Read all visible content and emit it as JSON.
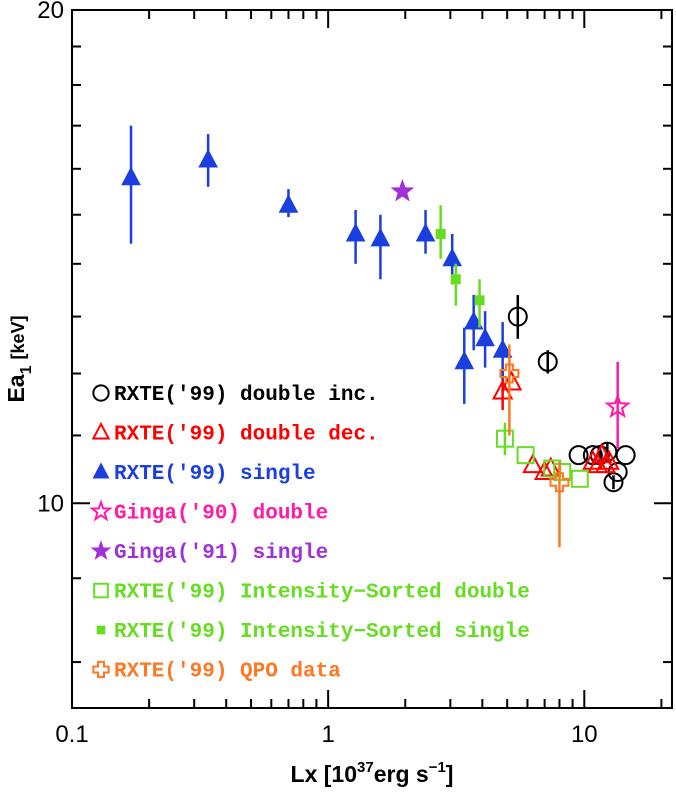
{
  "chart_data": {
    "type": "scatter",
    "xscale": "log",
    "yscale": "log",
    "xlim": [
      0.1,
      22
    ],
    "ylim": [
      7.5,
      20
    ],
    "xlabel": "Lx [10",
    "xlabel_sup": "37",
    "xlabel_tail": "erg s",
    "xlabel_tail_sup": "−1",
    "xlabel_close": "]",
    "ylabel": "Ea",
    "ylabel_sub": "1",
    "ylabel_unit": "[keV]",
    "x_ticks": [
      {
        "value": 0.1,
        "label": "0.1"
      },
      {
        "value": 1,
        "label": "1"
      },
      {
        "value": 10,
        "label": "10"
      }
    ],
    "y_ticks": [
      {
        "value": 10,
        "label": "10"
      },
      {
        "value": 20,
        "label": "20"
      }
    ],
    "legend_position": "left-middle",
    "series": [
      {
        "name": "RXTE('99) double inc.",
        "marker": "open-circle",
        "color": "#000000",
        "points": [
          {
            "x": 5.5,
            "y": 13.0,
            "ylo": 12.6,
            "yhi": 13.4
          },
          {
            "x": 7.2,
            "y": 12.2,
            "ylo": 12.0,
            "yhi": 12.4
          },
          {
            "x": 9.5,
            "y": 10.7
          },
          {
            "x": 10.8,
            "y": 10.7
          },
          {
            "x": 11.5,
            "y": 10.7,
            "ylo": 10.6,
            "yhi": 10.85
          },
          {
            "x": 12.3,
            "y": 10.75,
            "ylo": 10.6,
            "yhi": 10.9
          },
          {
            "x": 13.0,
            "y": 10.3,
            "ylo": 10.2,
            "yhi": 10.4
          },
          {
            "x": 13.5,
            "y": 10.45
          },
          {
            "x": 14.5,
            "y": 10.7
          }
        ]
      },
      {
        "name": "RXTE('99) double dec.",
        "marker": "open-triangle",
        "color": "#ff0000",
        "points": [
          {
            "x": 4.8,
            "y": 11.7,
            "ylo": 11.4,
            "yhi": 12.1
          },
          {
            "x": 5.2,
            "y": 11.85
          },
          {
            "x": 6.3,
            "y": 10.55
          },
          {
            "x": 7.0,
            "y": 10.45
          },
          {
            "x": 7.4,
            "y": 10.5
          },
          {
            "x": 10.8,
            "y": 10.6
          },
          {
            "x": 11.3,
            "y": 10.55
          },
          {
            "x": 11.7,
            "y": 10.7
          },
          {
            "x": 12.1,
            "y": 10.55
          },
          {
            "x": 12.5,
            "y": 10.6
          }
        ]
      },
      {
        "name": "RXTE('99) single",
        "marker": "filled-triangle",
        "color": "#1a3ee0",
        "points": [
          {
            "x": 0.17,
            "y": 15.8,
            "ylo": 14.4,
            "yhi": 17.0
          },
          {
            "x": 0.34,
            "y": 16.2,
            "ylo": 15.6,
            "yhi": 16.8
          },
          {
            "x": 0.7,
            "y": 15.2,
            "ylo": 14.95,
            "yhi": 15.55
          },
          {
            "x": 1.28,
            "y": 14.6,
            "ylo": 14.0,
            "yhi": 15.1
          },
          {
            "x": 1.6,
            "y": 14.5,
            "ylo": 13.7,
            "yhi": 15.0
          },
          {
            "x": 2.4,
            "y": 14.6,
            "ylo": 14.2,
            "yhi": 15.1
          },
          {
            "x": 3.05,
            "y": 14.1,
            "ylo": 13.6,
            "yhi": 14.6
          },
          {
            "x": 3.4,
            "y": 12.2,
            "ylo": 11.5,
            "yhi": 12.8
          },
          {
            "x": 3.7,
            "y": 12.9,
            "ylo": 12.4,
            "yhi": 13.4
          },
          {
            "x": 4.1,
            "y": 12.6,
            "ylo": 12.1,
            "yhi": 13.1
          },
          {
            "x": 4.8,
            "y": 12.4,
            "ylo": 11.9,
            "yhi": 12.9
          }
        ]
      },
      {
        "name": "Ginga('90) double",
        "marker": "open-star",
        "color": "#ff1aa8",
        "points": [
          {
            "x": 13.5,
            "y": 11.45,
            "ylo": 10.8,
            "yhi": 12.2
          }
        ]
      },
      {
        "name": "Ginga('91) single",
        "marker": "filled-star",
        "color": "#a030d8",
        "points": [
          {
            "x": 1.95,
            "y": 15.5
          }
        ]
      },
      {
        "name": "RXTE('99) Intensity−Sorted double",
        "marker": "open-square",
        "color": "#66dd22",
        "points": [
          {
            "x": 4.9,
            "y": 10.95,
            "ylo": 10.7,
            "yhi": 11.2
          },
          {
            "x": 5.9,
            "y": 10.7
          },
          {
            "x": 7.5,
            "y": 10.5
          },
          {
            "x": 8.2,
            "y": 10.45
          },
          {
            "x": 9.6,
            "y": 10.35
          }
        ]
      },
      {
        "name": "RXTE('99) Intensity−Sorted single",
        "marker": "filled-square",
        "color": "#66dd22",
        "points": [
          {
            "x": 2.75,
            "y": 14.6,
            "ylo": 14.1,
            "yhi": 15.2
          },
          {
            "x": 3.15,
            "y": 13.7,
            "ylo": 13.2,
            "yhi": 14.0
          },
          {
            "x": 3.9,
            "y": 13.3,
            "ylo": 12.8,
            "yhi": 13.7
          }
        ]
      },
      {
        "name": "RXTE('99) QPO data",
        "marker": "open-cross",
        "color": "#ff7722",
        "points": [
          {
            "x": 5.1,
            "y": 12.0,
            "ylo": 11.0,
            "yhi": 12.5
          },
          {
            "x": 8.0,
            "y": 10.3,
            "ylo": 9.4,
            "yhi": 10.6
          }
        ]
      }
    ]
  }
}
